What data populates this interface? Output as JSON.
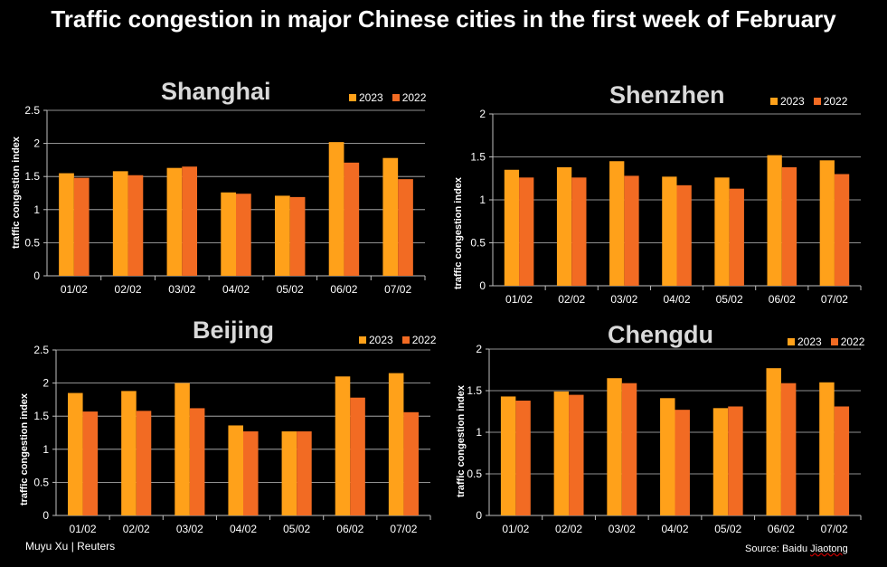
{
  "title": "Traffic congestion in major Chinese cities in the first week of February",
  "credit": "Muyu Xu | Reuters",
  "source_prefix": "Source: Baidu ",
  "source_name": "Jiaotong",
  "colors": {
    "y2023": "#FFA11A",
    "y2022": "#F26B23",
    "axis": "#bfbfbf",
    "bg": "#000000"
  },
  "chart_data": [
    {
      "type": "bar",
      "title": "Shanghai",
      "ylabel": "traffic congestion index",
      "categories": [
        "01/02",
        "02/02",
        "03/02",
        "04/02",
        "05/02",
        "06/02",
        "07/02"
      ],
      "ylim": [
        0,
        2.5
      ],
      "yticks": [
        "0",
        "0.5",
        "1",
        "1.5",
        "2",
        "2.5"
      ],
      "series": [
        {
          "name": "2023",
          "values": [
            1.55,
            1.58,
            1.63,
            1.26,
            1.21,
            2.02,
            1.78
          ]
        },
        {
          "name": "2022",
          "values": [
            1.48,
            1.52,
            1.65,
            1.24,
            1.19,
            1.71,
            1.46
          ]
        }
      ]
    },
    {
      "type": "bar",
      "title": "Shenzhen",
      "ylabel": "traffic congestion index",
      "categories": [
        "01/02",
        "02/02",
        "03/02",
        "04/02",
        "05/02",
        "06/02",
        "07/02"
      ],
      "ylim": [
        0,
        2
      ],
      "yticks": [
        "0",
        "0.5",
        "1",
        "1.5",
        "2"
      ],
      "series": [
        {
          "name": "2023",
          "values": [
            1.35,
            1.38,
            1.45,
            1.27,
            1.26,
            1.52,
            1.46
          ]
        },
        {
          "name": "2022",
          "values": [
            1.26,
            1.26,
            1.28,
            1.17,
            1.13,
            1.38,
            1.3
          ]
        }
      ]
    },
    {
      "type": "bar",
      "title": "Beijing",
      "ylabel": "traffic congestion index",
      "categories": [
        "01/02",
        "02/02",
        "03/02",
        "04/02",
        "05/02",
        "06/02",
        "07/02"
      ],
      "ylim": [
        0,
        2.5
      ],
      "yticks": [
        "0",
        "0.5",
        "1",
        "1.5",
        "2",
        "2.5"
      ],
      "series": [
        {
          "name": "2023",
          "values": [
            1.85,
            1.88,
            2.0,
            1.36,
            1.27,
            2.1,
            2.15
          ]
        },
        {
          "name": "2022",
          "values": [
            1.57,
            1.58,
            1.62,
            1.27,
            1.27,
            1.78,
            1.56
          ]
        }
      ]
    },
    {
      "type": "bar",
      "title": "Chengdu",
      "ylabel": "traffic congestion index",
      "categories": [
        "01/02",
        "02/02",
        "03/02",
        "04/02",
        "05/02",
        "06/02",
        "07/02"
      ],
      "ylim": [
        0,
        2
      ],
      "yticks": [
        "0",
        "0.5",
        "1",
        "1.5",
        "2"
      ],
      "series": [
        {
          "name": "2023",
          "values": [
            1.43,
            1.49,
            1.65,
            1.41,
            1.29,
            1.77,
            1.6
          ]
        },
        {
          "name": "2022",
          "values": [
            1.38,
            1.45,
            1.59,
            1.27,
            1.31,
            1.59,
            1.31
          ]
        }
      ]
    }
  ]
}
